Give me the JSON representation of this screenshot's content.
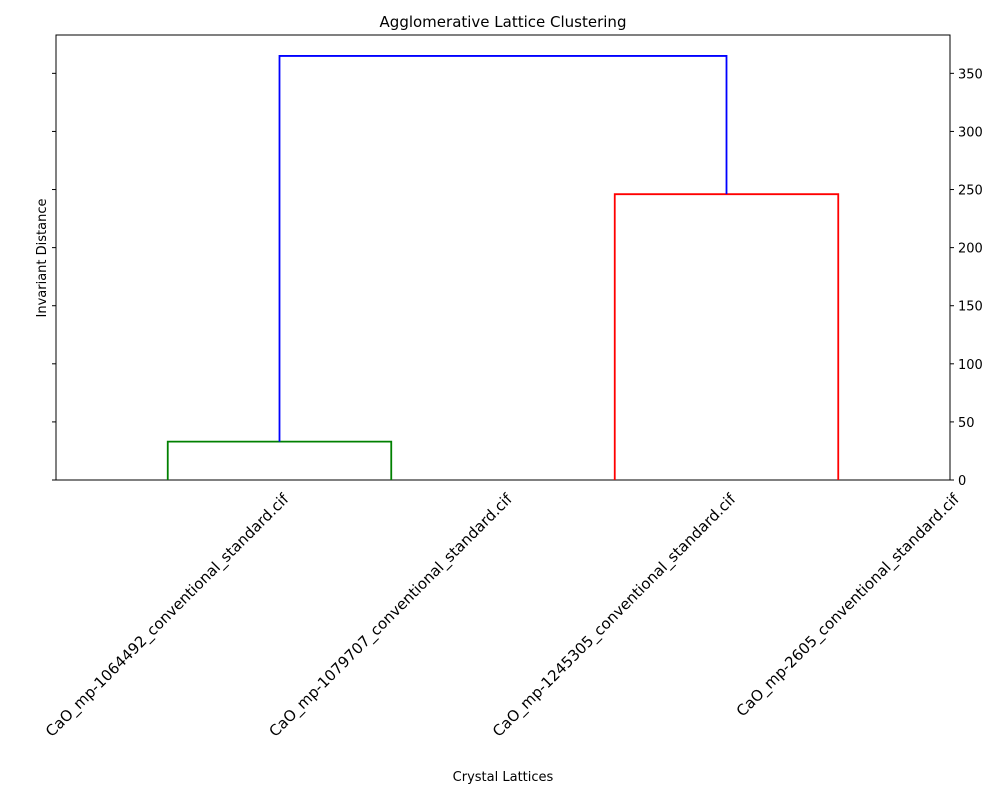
{
  "chart_data": {
    "type": "dendrogram",
    "title": "Agglomerative Lattice Clustering",
    "xlabel": "Crystal Lattices",
    "ylabel": "Invariant Distance",
    "categories": [
      "CaO_mp-1064492_conventional_standard.cif",
      "CaO_mp-1079707_conventional_standard.cif",
      "CaO_mp-1245305_conventional_standard.cif",
      "CaO_mp-2605_conventional_standard.cif"
    ],
    "y_ticks": [
      0,
      50,
      100,
      150,
      200,
      250,
      300,
      350
    ],
    "y_tick_labels": [
      "0",
      "50",
      "100",
      "150",
      "200",
      "250",
      "300",
      "350"
    ],
    "ylim": [
      0,
      383
    ],
    "right_axis_labels": true,
    "left_axis_labels": false,
    "grid": false,
    "links": [
      {
        "x_left": 0,
        "x_right": 2,
        "height": 33,
        "color": "#008000"
      },
      {
        "x_left": 4,
        "x_right": 6,
        "height": 246,
        "color": "#ff0000"
      },
      {
        "x_left": 1,
        "x_right": 5,
        "height": 365,
        "color": "#0000ff"
      }
    ]
  }
}
